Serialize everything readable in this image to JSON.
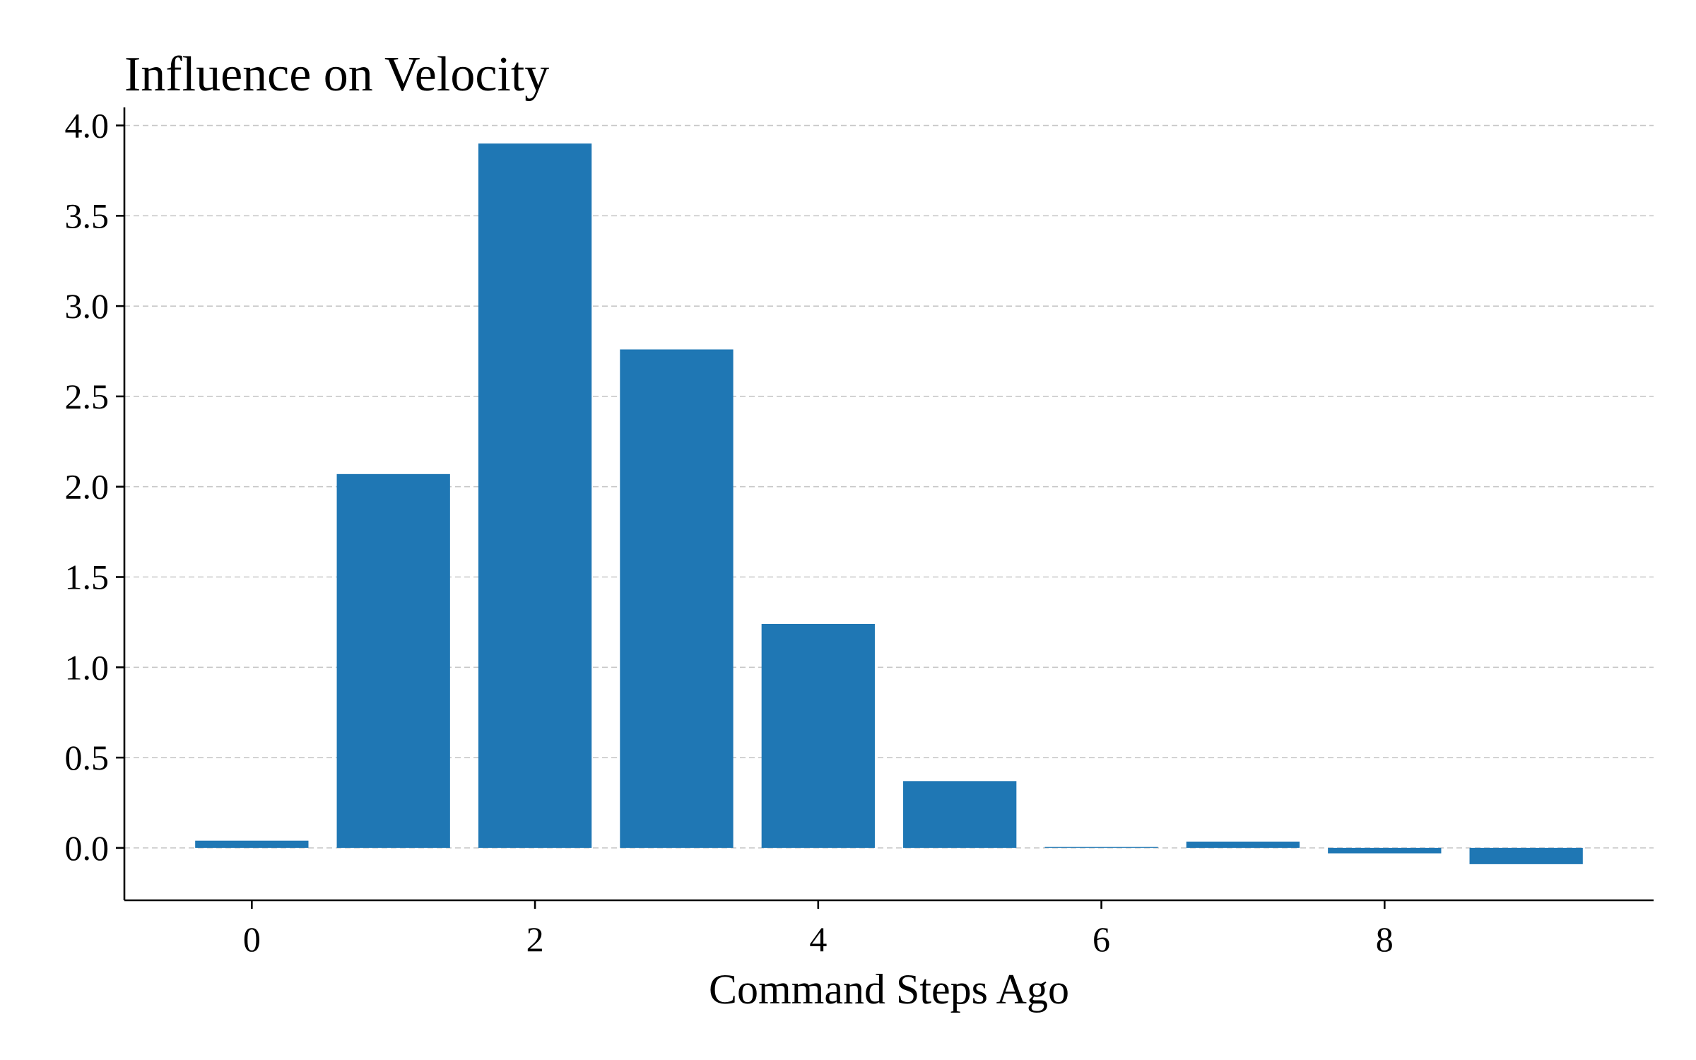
{
  "chart_data": {
    "type": "bar",
    "title": "Influence on Velocity",
    "xlabel": "Command Steps Ago",
    "ylabel": "",
    "categories": [
      0,
      1,
      2,
      3,
      4,
      5,
      6,
      7,
      8,
      9
    ],
    "values": [
      0.04,
      2.07,
      3.9,
      2.76,
      1.24,
      0.37,
      0.005,
      0.035,
      -0.03,
      -0.09
    ],
    "xlim": [
      -0.9,
      9.9
    ],
    "ylim": [
      -0.29,
      4.1
    ],
    "xticks": [
      "0",
      "2",
      "4",
      "6",
      "8"
    ],
    "yticks": [
      "0.0",
      "0.5",
      "1.0",
      "1.5",
      "2.0",
      "2.5",
      "3.0",
      "3.5",
      "4.0"
    ],
    "grid": "y-dashed",
    "bar_color": "#1f77b4"
  }
}
